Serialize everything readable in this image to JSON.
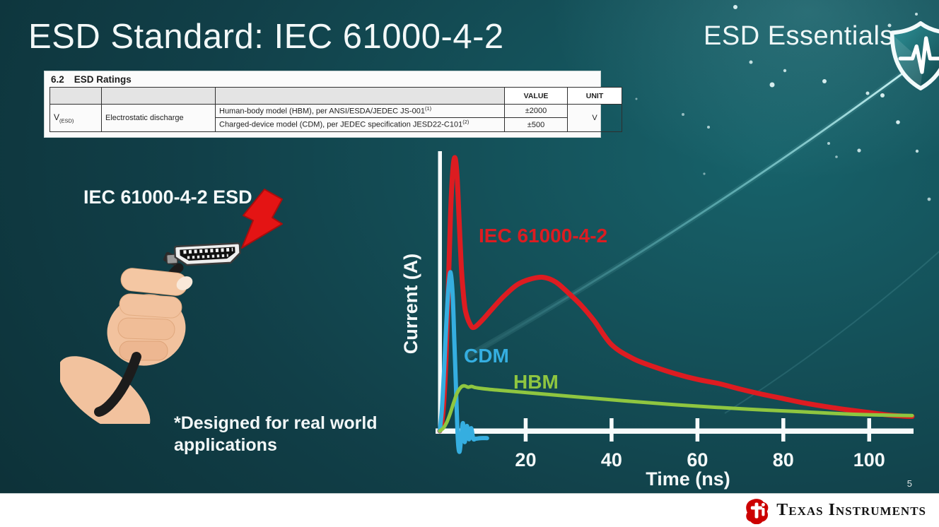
{
  "slide": {
    "title": "ESD Standard: IEC 61000-4-2",
    "series_label": "ESD Essentials",
    "page_number": "5"
  },
  "footer": {
    "brand": "Texas Instruments"
  },
  "icons": {
    "shield": "shield-pulse-icon",
    "bolt": "lightning-bolt-icon",
    "logo": "ti-logo-icon"
  },
  "ratings_table": {
    "section": "6.2",
    "section_title": "ESD Ratings",
    "value_header": "VALUE",
    "unit_header": "UNIT",
    "symbol": "V",
    "symbol_sub": "(ESD)",
    "group_label": "Electrostatic discharge",
    "unit": "V",
    "rows": [
      {
        "desc": "Human-body model (HBM), per ANSI/ESDA/JEDEC JS-001",
        "sup": "(1)",
        "value": "±2000"
      },
      {
        "desc": "Charged-device model (CDM), per JEDEC specification JESD22-C101",
        "sup": "(2)",
        "value": "±500"
      }
    ]
  },
  "illustration": {
    "caption": "IEC 61000-4-2 ESD",
    "note": "*Designed for real world applications"
  },
  "chart_data": {
    "type": "line",
    "title": "",
    "xlabel": "Time (ns)",
    "ylabel": "Current (A)",
    "xlim": [
      0,
      110
    ],
    "ylim": [
      -1,
      10
    ],
    "x_ticks": [
      20,
      40,
      60,
      80,
      100
    ],
    "grid": false,
    "legend_position": "inline-curve-labels",
    "series": [
      {
        "name": "IEC 61000-4-2",
        "color": "#dd1c21",
        "stroke_width": 7,
        "points": [
          [
            0,
            0
          ],
          [
            0.5,
            0.3
          ],
          [
            1,
            1.2
          ],
          [
            1.5,
            2.8
          ],
          [
            2,
            5.2
          ],
          [
            2.5,
            7.8
          ],
          [
            3,
            9.3
          ],
          [
            3.5,
            9.82
          ],
          [
            4,
            9.2
          ],
          [
            4.5,
            7.6
          ],
          [
            5,
            5.9
          ],
          [
            5.5,
            4.9
          ],
          [
            6,
            4.3
          ],
          [
            7,
            3.85
          ],
          [
            8,
            3.72
          ],
          [
            10,
            4.0
          ],
          [
            12,
            4.35
          ],
          [
            15,
            4.85
          ],
          [
            18,
            5.25
          ],
          [
            21,
            5.45
          ],
          [
            24,
            5.52
          ],
          [
            27,
            5.35
          ],
          [
            30,
            4.95
          ],
          [
            33,
            4.5
          ],
          [
            36,
            3.95
          ],
          [
            40,
            3.1
          ],
          [
            45,
            2.6
          ],
          [
            50,
            2.3
          ],
          [
            55,
            2.05
          ],
          [
            60,
            1.85
          ],
          [
            65,
            1.7
          ],
          [
            70,
            1.5
          ],
          [
            75,
            1.32
          ],
          [
            80,
            1.16
          ],
          [
            85,
            1.0
          ],
          [
            90,
            0.87
          ],
          [
            95,
            0.76
          ],
          [
            100,
            0.66
          ],
          [
            104,
            0.58
          ],
          [
            108,
            0.53
          ],
          [
            110,
            0.52
          ]
        ]
      },
      {
        "name": "CDM",
        "color": "#35aee0",
        "stroke_width": 6,
        "points": [
          [
            0,
            0
          ],
          [
            0.5,
            0.8
          ],
          [
            1,
            2.2
          ],
          [
            1.5,
            3.8
          ],
          [
            2,
            5.1
          ],
          [
            2.5,
            5.7
          ],
          [
            3,
            4.9
          ],
          [
            3.4,
            3.2
          ],
          [
            3.8,
            1.4
          ],
          [
            4.2,
            -0.3
          ],
          [
            4.6,
            -0.75
          ],
          [
            5,
            -0.2
          ],
          [
            5.4,
            0.28
          ],
          [
            5.8,
            -0.4
          ],
          [
            6.3,
            0.18
          ],
          [
            6.8,
            -0.3
          ],
          [
            7.3,
            0.1
          ],
          [
            7.8,
            -0.28
          ],
          [
            8.4,
            -0.28
          ],
          [
            9.5,
            -0.26
          ],
          [
            11,
            -0.26
          ]
        ]
      },
      {
        "name": "HBM",
        "color": "#8fc640",
        "stroke_width": 5,
        "points": [
          [
            0,
            0
          ],
          [
            0.8,
            0.1
          ],
          [
            1.6,
            0.3
          ],
          [
            2.4,
            0.62
          ],
          [
            3.2,
            1.0
          ],
          [
            4,
            1.35
          ],
          [
            5,
            1.58
          ],
          [
            5.8,
            1.62
          ],
          [
            6.6,
            1.57
          ],
          [
            7.4,
            1.6
          ],
          [
            8.2,
            1.56
          ],
          [
            10,
            1.52
          ],
          [
            14,
            1.46
          ],
          [
            20,
            1.38
          ],
          [
            26,
            1.3
          ],
          [
            32,
            1.22
          ],
          [
            40,
            1.12
          ],
          [
            48,
            1.02
          ],
          [
            56,
            0.93
          ],
          [
            64,
            0.85
          ],
          [
            72,
            0.78
          ],
          [
            80,
            0.72
          ],
          [
            88,
            0.66
          ],
          [
            96,
            0.6
          ],
          [
            103,
            0.57
          ],
          [
            110,
            0.55
          ]
        ]
      }
    ]
  }
}
